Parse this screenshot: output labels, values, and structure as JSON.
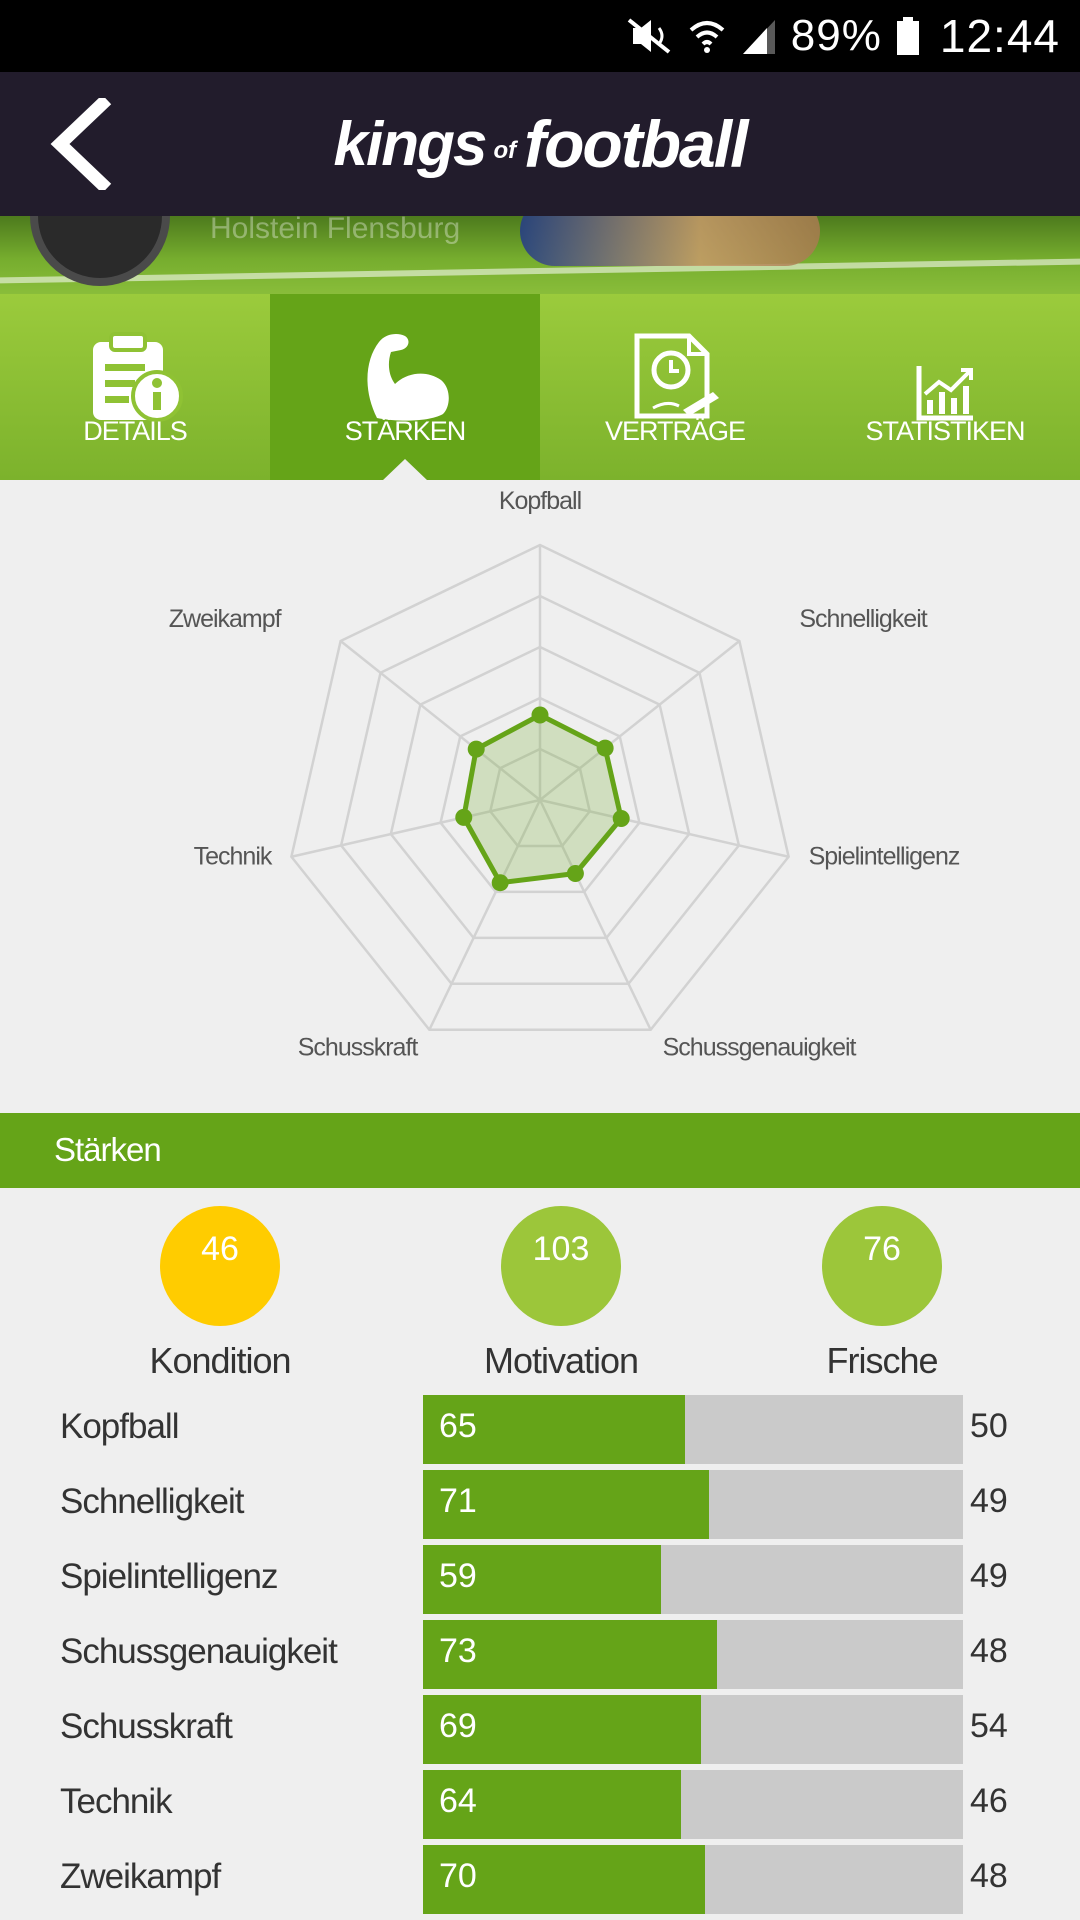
{
  "status_bar": {
    "battery_percent": "89%",
    "time": "12:44",
    "icons": [
      "mute-icon",
      "wifi-icon",
      "signal-icon",
      "battery-icon"
    ]
  },
  "header": {
    "logo_part1": "kings",
    "logo_part2": "of",
    "logo_part3": "football",
    "back_icon": "chevron-left-icon"
  },
  "banner": {
    "club_name": "Holstein Flensburg"
  },
  "tabs": [
    {
      "label": "DETAILS",
      "icon": "document-info-icon",
      "active": false
    },
    {
      "label": "STÄRKEN",
      "icon": "flexed-arm-icon",
      "active": true
    },
    {
      "label": "VERTRÄGE",
      "icon": "contract-clock-icon",
      "active": false
    },
    {
      "label": "STATISTIKEN",
      "icon": "line-chart-icon",
      "active": false
    }
  ],
  "colors": {
    "accent_green": "#65a418",
    "light_green": "#9cc63a",
    "yellow": "#ffcc00",
    "header_dark": "#221c2c"
  },
  "chart_data": {
    "type": "radar",
    "axes": [
      "Kopfball",
      "Schnelligkeit",
      "Spielintelligenz",
      "Schussgenauigkeit",
      "Schusskraft",
      "Technik",
      "Zweikampf"
    ],
    "values": [
      50,
      49,
      49,
      48,
      54,
      46,
      48
    ],
    "range": [
      0,
      150
    ],
    "rings": 5
  },
  "section": {
    "title": "Stärken"
  },
  "meters": [
    {
      "label": "Kondition",
      "value": 46,
      "color": "#ffcc00"
    },
    {
      "label": "Motivation",
      "value": 103,
      "color": "#9cc63a"
    },
    {
      "label": "Frische",
      "value": 76,
      "color": "#9cc63a"
    }
  ],
  "skills": [
    {
      "label": "Kopfball",
      "value": 65,
      "right": 50
    },
    {
      "label": "Schnelligkeit",
      "value": 71,
      "right": 49
    },
    {
      "label": "Spielintelligenz",
      "value": 59,
      "right": 49
    },
    {
      "label": "Schussgenauigkeit",
      "value": 73,
      "right": 48
    },
    {
      "label": "Schusskraft",
      "value": 69,
      "right": 54
    },
    {
      "label": "Technik",
      "value": 64,
      "right": 46
    },
    {
      "label": "Zweikampf",
      "value": 70,
      "right": 48
    }
  ],
  "skills_scale_max": 134
}
